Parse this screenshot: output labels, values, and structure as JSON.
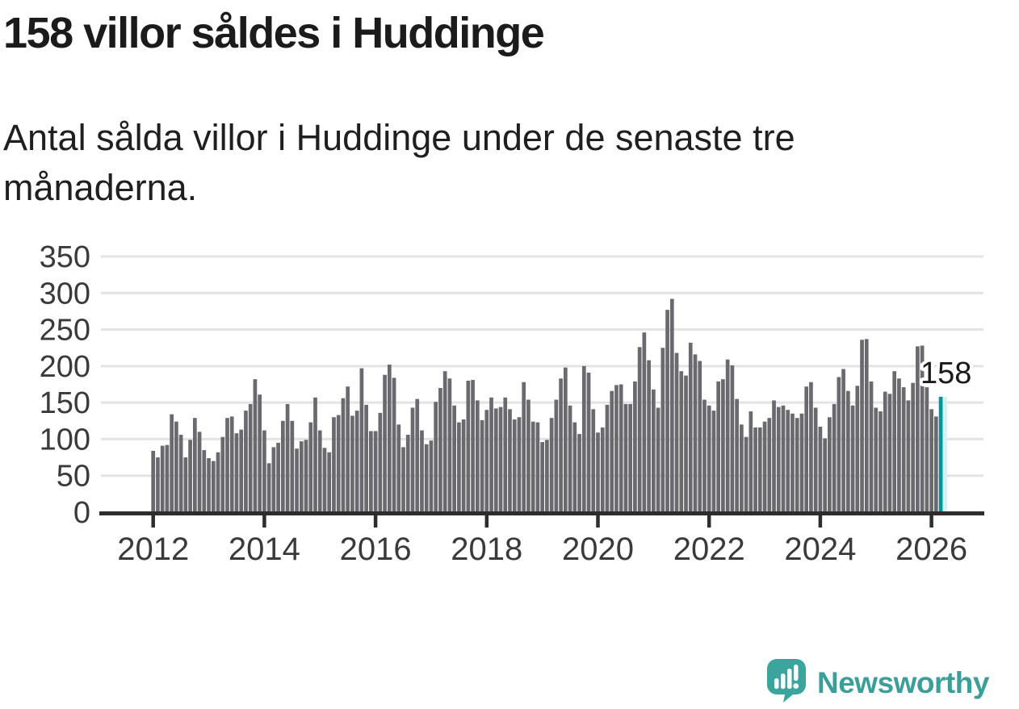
{
  "header": {
    "title": "158 villor såldes i Huddinge",
    "subtitle_lines": [
      "Antal sålda villor i Huddinge under de senaste tre",
      "månaderna."
    ]
  },
  "chart_data": {
    "type": "bar",
    "title": "158 villor såldes i Huddinge",
    "description": "Antal sålda villor i Huddinge under de senaste tre månaderna.",
    "frequency": "monthly",
    "x_start": "2012-01",
    "x_end": "2026-03",
    "ylim": [
      0,
      350
    ],
    "grid": true,
    "y_ticks": [
      0,
      50,
      100,
      150,
      200,
      250,
      300,
      350
    ],
    "x_tick_years": [
      2012,
      2014,
      2016,
      2018,
      2020,
      2022,
      2024,
      2026
    ],
    "annotation": {
      "text": "158",
      "target": "last-bar"
    },
    "series": [
      {
        "name": "Antal sålda villor",
        "values": [
          84,
          75,
          91,
          92,
          134,
          124,
          106,
          75,
          99,
          129,
          110,
          85,
          74,
          70,
          82,
          103,
          129,
          131,
          108,
          113,
          139,
          148,
          182,
          161,
          112,
          67,
          89,
          95,
          125,
          148,
          125,
          87,
          97,
          99,
          123,
          157,
          112,
          88,
          82,
          130,
          133,
          156,
          172,
          132,
          139,
          197,
          147,
          111,
          111,
          136,
          188,
          202,
          184,
          120,
          89,
          106,
          143,
          155,
          112,
          93,
          98,
          151,
          170,
          193,
          183,
          146,
          123,
          127,
          180,
          181,
          153,
          126,
          140,
          157,
          142,
          144,
          157,
          141,
          127,
          130,
          178,
          154,
          124,
          123,
          96,
          99,
          129,
          154,
          183,
          198,
          146,
          123,
          107,
          200,
          191,
          141,
          109,
          116,
          147,
          166,
          174,
          175,
          148,
          148,
          179,
          226,
          246,
          208,
          168,
          143,
          225,
          277,
          292,
          218,
          193,
          187,
          232,
          216,
          207,
          154,
          146,
          139,
          179,
          182,
          209,
          201,
          155,
          120,
          103,
          138,
          116,
          116,
          124,
          129,
          153,
          144,
          146,
          140,
          135,
          129,
          135,
          172,
          178,
          143,
          117,
          101,
          130,
          148,
          185,
          196,
          166,
          146,
          173,
          236,
          237,
          179,
          143,
          138,
          165,
          162,
          193,
          183,
          171,
          153,
          177,
          227,
          228,
          171,
          141,
          131,
          158
        ]
      }
    ],
    "colors": {
      "bar": "#6a6a6e",
      "highlight": "#0a9298",
      "highlight_halo": "#d7f0f0",
      "gridline": "#e3e3e3",
      "axis": "#2d2d2d",
      "tick_label": "#3a3a3a",
      "annotation_text": "#1a1a1a"
    }
  },
  "footer": {
    "brand": "Newsworthy",
    "logo_icon": "newsworthy-speech-bubble-chart-icon",
    "brand_color": "#3b9e98"
  }
}
